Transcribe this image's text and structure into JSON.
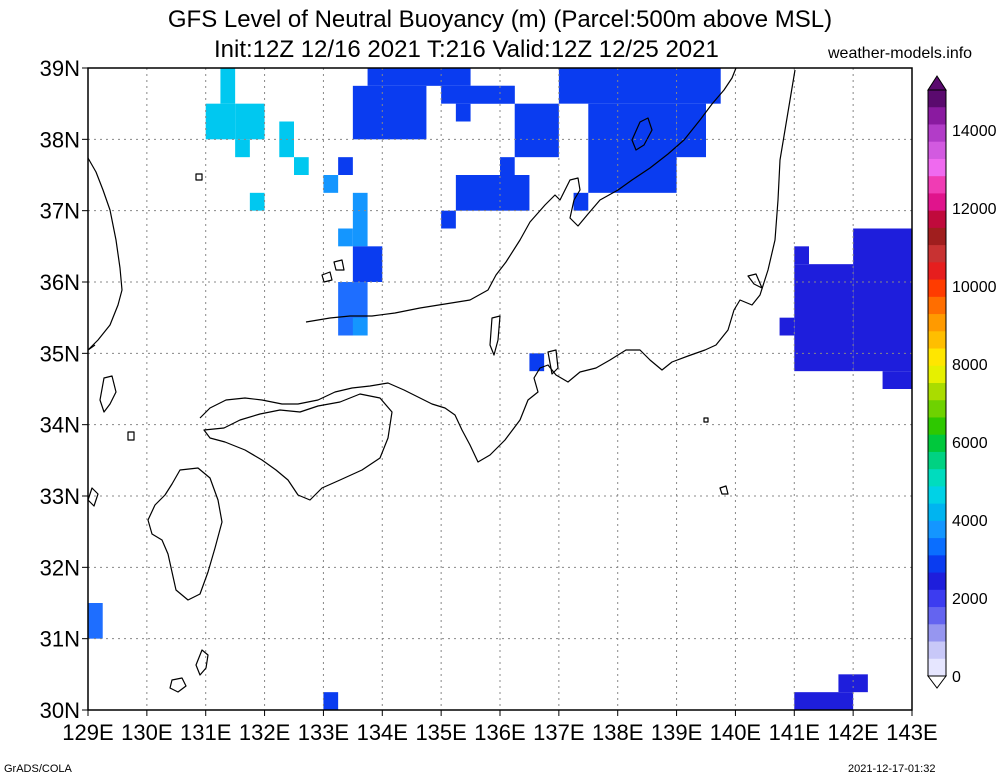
{
  "title": {
    "line1": "GFS Level of Neutral Buoyancy (m) (Parcel:500m above MSL)",
    "line2": "Init:12Z 12/16 2021 T:216 Valid:12Z 12/25 2021"
  },
  "credit": "weather-models.info",
  "footer": {
    "left": "GrADS/COLA",
    "right": "2021-12-17-01:32"
  },
  "axes": {
    "lat_ticks": [
      "39N",
      "38N",
      "37N",
      "36N",
      "35N",
      "34N",
      "33N",
      "32N",
      "31N",
      "30N"
    ],
    "lon_ticks": [
      "129E",
      "130E",
      "131E",
      "132E",
      "133E",
      "134E",
      "135E",
      "136E",
      "137E",
      "138E",
      "139E",
      "140E",
      "141E",
      "142E",
      "143E"
    ],
    "lon_range": [
      129,
      143
    ],
    "lat_range": [
      30,
      39
    ]
  },
  "colorbar": {
    "labels": [
      "14000",
      "12000",
      "10000",
      "8000",
      "6000",
      "4000",
      "2000",
      "0"
    ],
    "colors": [
      "#5a0a6e",
      "#8a1aa0",
      "#b23cc8",
      "#d25ae0",
      "#ef6aef",
      "#f03cb4",
      "#e0148c",
      "#c00a3c",
      "#a01e1e",
      "#c83232",
      "#e61e1e",
      "#ff3c00",
      "#ff6e00",
      "#ff9a00",
      "#ffbe00",
      "#ffe600",
      "#e6f000",
      "#aadc00",
      "#6ed200",
      "#2ec800",
      "#00c83c",
      "#00d282",
      "#00dcbe",
      "#00d2e6",
      "#00b4f0",
      "#1496ff",
      "#0a6eff",
      "#0a3cf0",
      "#1e1edc",
      "#3c3cf0",
      "#6464f0",
      "#9696f0",
      "#c8c8f8",
      "#e6e6ff"
    ]
  },
  "chart_data": {
    "type": "heatmap",
    "title": "GFS Level of Neutral Buoyancy (m) (Parcel:500m above MSL)",
    "subtitle": "Init:12Z 12/16 2021 T:216 Valid:12Z 12/25 2021",
    "xlabel": "",
    "ylabel": "",
    "xlim": [
      129,
      143
    ],
    "ylim": [
      30,
      39
    ],
    "units": "m",
    "cells": [
      {
        "lon0": 131.0,
        "lon1": 131.5,
        "lat0": 38.0,
        "lat1": 38.5,
        "value": 2600
      },
      {
        "lon0": 131.5,
        "lon1": 132.0,
        "lat0": 38.0,
        "lat1": 38.5,
        "value": 2600
      },
      {
        "lon0": 131.25,
        "lon1": 131.5,
        "lat0": 38.5,
        "lat1": 39.0,
        "value": 2500
      },
      {
        "lon0": 131.5,
        "lon1": 131.75,
        "lat0": 37.75,
        "lat1": 38.0,
        "value": 2500
      },
      {
        "lon0": 132.25,
        "lon1": 132.5,
        "lat0": 37.75,
        "lat1": 38.25,
        "value": 2500
      },
      {
        "lon0": 132.5,
        "lon1": 132.75,
        "lat0": 37.5,
        "lat1": 37.75,
        "value": 2500
      },
      {
        "lon0": 131.75,
        "lon1": 132.0,
        "lat0": 37.0,
        "lat1": 37.25,
        "value": 2500
      },
      {
        "lon0": 133.0,
        "lon1": 133.25,
        "lat0": 37.25,
        "lat1": 37.5,
        "value": 2300
      },
      {
        "lon0": 133.25,
        "lon1": 133.5,
        "lat0": 37.5,
        "lat1": 37.75,
        "value": 1500
      },
      {
        "lon0": 133.5,
        "lon1": 133.75,
        "lat0": 36.5,
        "lat1": 37.25,
        "value": 2300
      },
      {
        "lon0": 133.25,
        "lon1": 133.5,
        "lat0": 36.5,
        "lat1": 36.75,
        "value": 2300
      },
      {
        "lon0": 133.5,
        "lon1": 134.0,
        "lat0": 36.0,
        "lat1": 36.5,
        "value": 1500
      },
      {
        "lon0": 133.25,
        "lon1": 133.75,
        "lat0": 35.25,
        "lat1": 36.0,
        "value": 2000
      },
      {
        "lon0": 133.5,
        "lon1": 133.75,
        "lat0": 35.25,
        "lat1": 35.5,
        "value": 2300
      },
      {
        "lon0": 133.75,
        "lon1": 135.5,
        "lat0": 38.75,
        "lat1": 39.0,
        "value": 1500
      },
      {
        "lon0": 133.5,
        "lon1": 134.75,
        "lat0": 38.0,
        "lat1": 38.75,
        "value": 1500
      },
      {
        "lon0": 135.0,
        "lon1": 136.25,
        "lat0": 38.5,
        "lat1": 38.75,
        "value": 1500
      },
      {
        "lon0": 135.25,
        "lon1": 135.5,
        "lat0": 38.25,
        "lat1": 38.5,
        "value": 1500
      },
      {
        "lon0": 135.5,
        "lon1": 136.25,
        "lat0": 38.5,
        "lat1": 38.75,
        "value": 1500
      },
      {
        "lon0": 136.25,
        "lon1": 137.0,
        "lat0": 37.75,
        "lat1": 38.5,
        "value": 1400
      },
      {
        "lon0": 137.0,
        "lon1": 139.75,
        "lat0": 38.5,
        "lat1": 39.0,
        "value": 1600
      },
      {
        "lon0": 137.5,
        "lon1": 139.0,
        "lat0": 37.25,
        "lat1": 38.5,
        "value": 1500
      },
      {
        "lon0": 139.0,
        "lon1": 139.5,
        "lat0": 37.75,
        "lat1": 38.5,
        "value": 1500
      },
      {
        "lon0": 137.25,
        "lon1": 137.5,
        "lat0": 37.0,
        "lat1": 37.25,
        "value": 1500
      },
      {
        "lon0": 135.25,
        "lon1": 136.5,
        "lat0": 37.0,
        "lat1": 37.5,
        "value": 1400
      },
      {
        "lon0": 135.5,
        "lon1": 135.75,
        "lat0": 37.25,
        "lat1": 37.5,
        "value": 1400
      },
      {
        "lon0": 136.0,
        "lon1": 136.25,
        "lat0": 37.5,
        "lat1": 37.75,
        "value": 1400
      },
      {
        "lon0": 135.0,
        "lon1": 135.25,
        "lat0": 36.75,
        "lat1": 37.0,
        "value": 1400
      },
      {
        "lon0": 136.5,
        "lon1": 136.75,
        "lat0": 34.75,
        "lat1": 35.0,
        "value": 1400
      },
      {
        "lon0": 141.0,
        "lon1": 142.0,
        "lat0": 34.75,
        "lat1": 36.25,
        "value": 1300
      },
      {
        "lon0": 141.0,
        "lon1": 141.25,
        "lat0": 36.25,
        "lat1": 36.5,
        "value": 1300
      },
      {
        "lon0": 140.75,
        "lon1": 141.0,
        "lat0": 35.25,
        "lat1": 35.5,
        "value": 1300
      },
      {
        "lon0": 142.0,
        "lon1": 143.0,
        "lat0": 34.75,
        "lat1": 36.75,
        "value": 1300
      },
      {
        "lon0": 142.5,
        "lon1": 143.0,
        "lat0": 34.5,
        "lat1": 34.75,
        "value": 1300
      },
      {
        "lon0": 141.0,
        "lon1": 142.0,
        "lat0": 30.0,
        "lat1": 30.25,
        "value": 1300
      },
      {
        "lon0": 141.75,
        "lon1": 142.25,
        "lat0": 30.25,
        "lat1": 30.5,
        "value": 1300
      },
      {
        "lon0": 129.0,
        "lon1": 129.25,
        "lat0": 31.0,
        "lat1": 31.5,
        "value": 1800
      },
      {
        "lon0": 133.0,
        "lon1": 133.25,
        "lat0": 30.0,
        "lat1": 30.25,
        "value": 1600
      }
    ]
  }
}
